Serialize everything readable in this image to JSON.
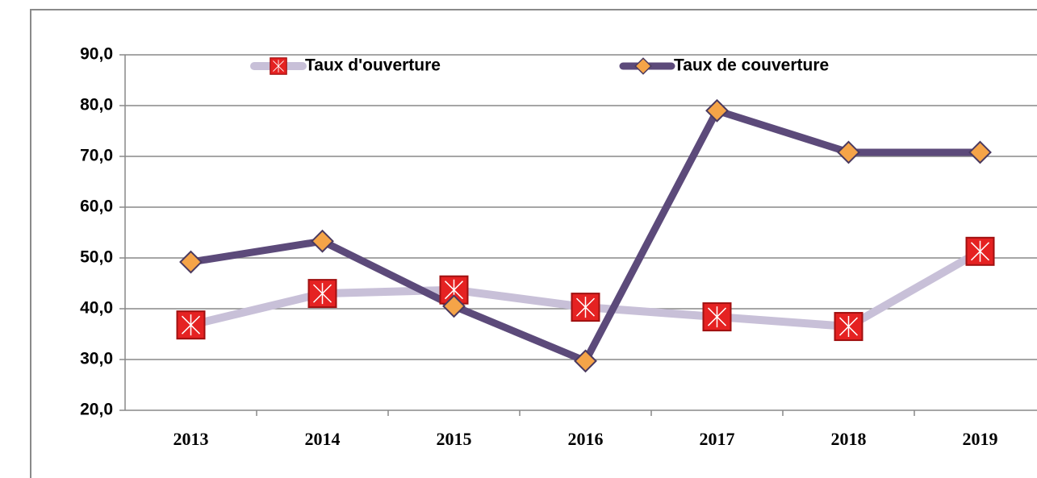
{
  "chart_data": {
    "type": "line",
    "categories": [
      "2013",
      "2014",
      "2015",
      "2016",
      "2017",
      "2018",
      "2019"
    ],
    "series": [
      {
        "name": "Taux d'ouverture",
        "color": "#c8c0d8",
        "marker_color": "#e52222",
        "values": [
          36.8,
          43.0,
          43.7,
          40.3,
          38.4,
          36.5,
          51.3
        ]
      },
      {
        "name": "Taux de couverture",
        "color": "#5c4a7a",
        "marker_color": "#f5a448",
        "values": [
          49.2,
          53.3,
          40.5,
          29.7,
          79.0,
          70.8,
          70.8
        ]
      }
    ],
    "ylim": [
      20,
      90
    ],
    "yticks": [
      {
        "value": 20,
        "label": "20,0"
      },
      {
        "value": 30,
        "label": "30,0"
      },
      {
        "value": 40,
        "label": "40,0"
      },
      {
        "value": 50,
        "label": "50,0"
      },
      {
        "value": 60,
        "label": "60,0"
      },
      {
        "value": 70,
        "label": "70,0"
      },
      {
        "value": 80,
        "label": "80,0"
      },
      {
        "value": 90,
        "label": "90,0"
      }
    ],
    "grid": true,
    "legend": "top"
  }
}
